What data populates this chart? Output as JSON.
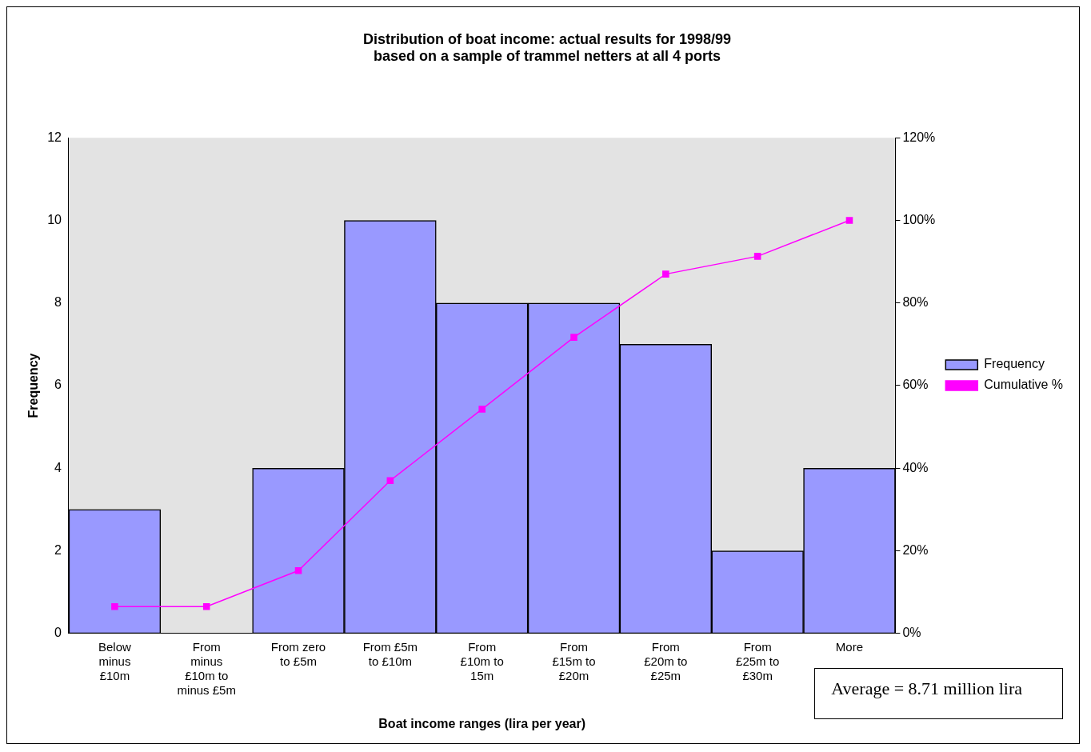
{
  "chart_data": {
    "type": "bar",
    "title": "Distribution of boat income: actual results for 1998/99\nbased on a sample of trammel netters at all 4 ports",
    "xlabel": "Boat income ranges (lira per year)",
    "ylabel": "Frequency",
    "categories": [
      "Below minus £10m",
      "From minus £10m to minus £5m",
      "From zero to £5m",
      "From £5m to £10m",
      "From £10m to 15m",
      "From £15m to £20m",
      "From £20m to £25m",
      "From £25m to £30m",
      "More"
    ],
    "series": [
      {
        "name": "Frequency",
        "color": "#9999ff",
        "values": [
          3,
          0,
          4,
          10,
          8,
          8,
          7,
          2,
          4
        ]
      },
      {
        "name": "Cumulative %",
        "type": "line",
        "axis": "y2",
        "color": "#ff00ff",
        "marker": "square",
        "values": [
          6.5,
          6.5,
          15.2,
          37,
          54.3,
          71.7,
          87,
          91.3,
          100
        ]
      }
    ],
    "ylim": [
      0,
      12
    ],
    "yticks": [
      0,
      2,
      4,
      6,
      8,
      10,
      12
    ],
    "y2lim": [
      0,
      120
    ],
    "y2ticks": [
      {
        "value": 0,
        "label": "0%"
      },
      {
        "value": 20,
        "label": "20%"
      },
      {
        "value": 40,
        "label": "40%"
      },
      {
        "value": 60,
        "label": "60%"
      },
      {
        "value": 80,
        "label": "80%"
      },
      {
        "value": 100,
        "label": "100%"
      },
      {
        "value": 120,
        "label": "120%"
      }
    ],
    "grid": false,
    "legend": "right",
    "annotations": [
      "Average = 8.71 million lira"
    ]
  }
}
